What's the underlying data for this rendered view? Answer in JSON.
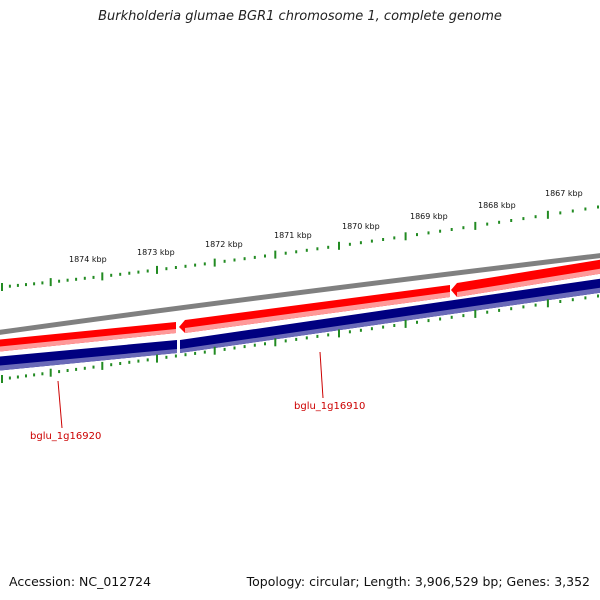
{
  "title": "Burkholderia glumae BGR1 chromosome 1, complete genome",
  "footer": {
    "accession": "Accession: NC_012724",
    "summary": "Topology: circular; Length: 3,906,529 bp; Genes: 3,352"
  },
  "ruler": {
    "labels": [
      "1867 kbp",
      "1868 kbp",
      "1869 kbp",
      "1870 kbp",
      "1871 kbp",
      "1872 kbp",
      "1873 kbp",
      "1874 kbp"
    ]
  },
  "genes": [
    {
      "name": "bglu_1g16910",
      "strand": "minus"
    },
    {
      "name": "bglu_1g16920",
      "strand": "minus"
    }
  ],
  "colors": {
    "backbone": "#808080",
    "gene_forward": "#ff0000",
    "cds_band": "#000080",
    "ticks": "#228b22",
    "gene_label": "#cc0000"
  }
}
